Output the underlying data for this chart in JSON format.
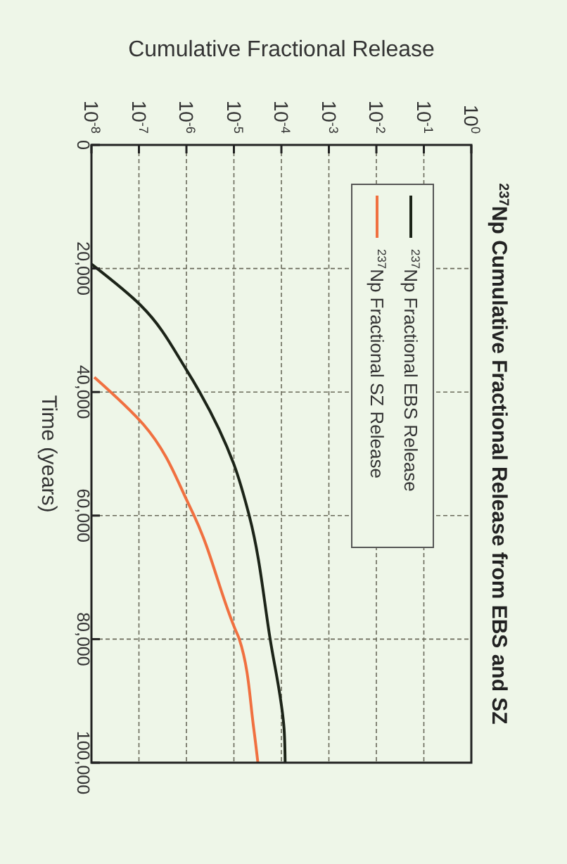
{
  "chart_data": {
    "type": "line",
    "title": "$^{237}$Np Cumulative Fractional Release from EBS and SZ",
    "xlabel": "Cumulative Fractional Release",
    "ylabel": "Time (years)",
    "log": "x",
    "grid": true,
    "legend": "top right",
    "line_style": "solid",
    "ylim": [
      100000,
      0
    ],
    "yticks": [
      0,
      {
        "value": 20000,
        "label": "20,000"
      },
      {
        "value": 40000,
        "label": "40,000"
      },
      {
        "value": 60000,
        "label": "60,000"
      },
      {
        "value": 80000,
        "label": "80,000"
      },
      {
        "value": 100000,
        "label": "100,000"
      }
    ],
    "xlim": [
      1e-08,
      1
    ],
    "xticks": [
      {
        "value": 1e-08,
        "label": "10$^{-8}$"
      },
      {
        "value": 1e-07,
        "label": "10$^{-7}$"
      },
      {
        "value": 1e-06,
        "label": "10$^{-6}$"
      },
      {
        "value": 1e-05,
        "label": "10$^{-5}$"
      },
      {
        "value": 0.0001,
        "label": "10$^{-4}$"
      },
      {
        "value": 0.001,
        "label": "10$^{-3}$"
      },
      {
        "value": 0.01,
        "label": "10$^{-2}$"
      },
      {
        "value": 0.1,
        "label": "10$^{-1}$"
      },
      {
        "value": 1,
        "label": "10$^{0}$"
      }
    ],
    "series": [
      {
        "name": "$^{237}$Np Fractional EBS Release",
        "color": "#1c2418",
        "x": [
          1e-08,
          1.1e-07,
          1e-06,
          1.9e-06,
          1e-05,
          2.1e-05,
          5.8e-05,
          0.000115,
          0.00012
        ],
        "values": [
          19300,
          26000,
          36400,
          40000,
          51700,
          60000,
          80000,
          95000,
          100000
        ]
      },
      {
        "name": "$^{237}$Np Fractional SZ Release",
        "color": "#f07040",
        "x": [
          1.15e-08,
          1.26e-07,
          1.17e-06,
          1.45e-06,
          1.05e-05,
          1.3e-05,
          2.6e-05,
          3.2e-05
        ],
        "values": [
          37600,
          45300,
          58500,
          60000,
          78300,
          80000,
          94300,
          100000
        ]
      }
    ]
  }
}
